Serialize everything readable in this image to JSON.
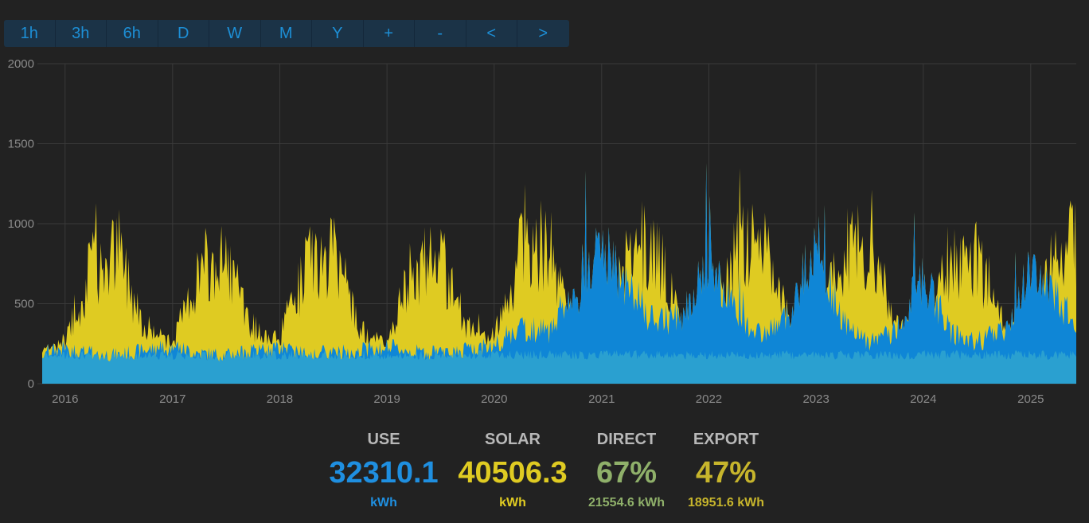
{
  "toolbar": {
    "buttons": [
      "1h",
      "3h",
      "6h",
      "D",
      "W",
      "M",
      "Y",
      "+",
      "-",
      "<",
      ">"
    ]
  },
  "colors": {
    "use": "#1f8fe0",
    "solar": "#dfcb22",
    "direct": "#8fb06a",
    "export": "#c7b52c",
    "use_area": "#2aa0d0",
    "import_peaks": "#0f86d6",
    "grid": "#3a3a3a",
    "tick_text": "#8a8a8a"
  },
  "stats": {
    "use": {
      "label": "USE",
      "value": "32310.1",
      "unit": "kWh"
    },
    "solar": {
      "label": "SOLAR",
      "value": "40506.3",
      "unit": "kWh"
    },
    "direct": {
      "label": "DIRECT",
      "value": "67%",
      "unit": "21554.6 kWh"
    },
    "export": {
      "label": "EXPORT",
      "value": "47%",
      "unit": "18951.6 kWh"
    }
  },
  "chart_data": {
    "type": "area",
    "x_range": [
      "2015-10-15",
      "2025-06-05"
    ],
    "ylim": [
      0,
      2000
    ],
    "yticks": [
      0,
      500,
      1000,
      1500,
      2000
    ],
    "xticks": [
      "2016",
      "2017",
      "2018",
      "2019",
      "2020",
      "2021",
      "2022",
      "2023",
      "2024",
      "2025"
    ],
    "grid": true,
    "series": [
      {
        "name": "USE",
        "x": [
          "2015-11",
          "2016-01",
          "2016-04",
          "2016-07",
          "2016-10",
          "2017-01",
          "2017-04",
          "2017-07",
          "2017-10",
          "2018-01",
          "2018-04",
          "2018-07",
          "2018-10",
          "2019-01",
          "2019-04",
          "2019-07",
          "2019-10",
          "2020-01",
          "2020-04",
          "2020-07",
          "2020-10",
          "2021-01",
          "2021-04",
          "2021-07",
          "2021-10",
          "2022-01",
          "2022-04",
          "2022-07",
          "2022-10",
          "2023-01",
          "2023-04",
          "2023-07",
          "2023-10",
          "2024-01",
          "2024-04",
          "2024-07",
          "2024-10",
          "2025-01",
          "2025-04",
          "2025-06"
        ],
        "values": [
          200,
          220,
          190,
          180,
          210,
          230,
          190,
          180,
          200,
          220,
          200,
          190,
          210,
          230,
          200,
          190,
          210,
          240,
          360,
          320,
          520,
          850,
          600,
          380,
          420,
          760,
          450,
          300,
          420,
          900,
          380,
          260,
          320,
          680,
          320,
          260,
          330,
          700,
          520,
          420
        ]
      },
      {
        "name": "SOLAR",
        "x": [
          "2015-11",
          "2016-01",
          "2016-04",
          "2016-07",
          "2016-10",
          "2017-01",
          "2017-04",
          "2017-07",
          "2017-10",
          "2018-01",
          "2018-04",
          "2018-07",
          "2018-10",
          "2019-01",
          "2019-04",
          "2019-07",
          "2019-10",
          "2020-01",
          "2020-04",
          "2020-07",
          "2020-10",
          "2021-01",
          "2021-04",
          "2021-07",
          "2021-10",
          "2022-01",
          "2022-04",
          "2022-07",
          "2022-10",
          "2023-01",
          "2023-04",
          "2023-07",
          "2023-10",
          "2024-01",
          "2024-04",
          "2024-07",
          "2024-10",
          "2025-01",
          "2025-04",
          "2025-06"
        ],
        "values": [
          40,
          90,
          560,
          650,
          180,
          70,
          520,
          600,
          170,
          80,
          580,
          640,
          170,
          70,
          540,
          620,
          170,
          90,
          700,
          720,
          180,
          100,
          620,
          680,
          180,
          120,
          640,
          700,
          180,
          120,
          620,
          660,
          180,
          120,
          600,
          640,
          180,
          120,
          660,
          720
        ]
      }
    ]
  }
}
